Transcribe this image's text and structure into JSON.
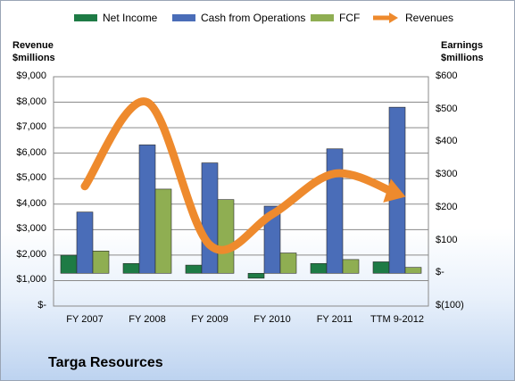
{
  "chart_data": {
    "type": "bar",
    "title": "",
    "categories": [
      "FY 2007",
      "FY 2008",
      "FY 2009",
      "FY 2010",
      "FY 2011",
      "TTM 9-2012"
    ],
    "series": [
      {
        "name": "Net Income",
        "axis": "right",
        "type": "bar",
        "color": "#1e7b45",
        "values": [
          55,
          30,
          25,
          -15,
          30,
          35
        ]
      },
      {
        "name": "Cash from Operations",
        "axis": "right",
        "type": "bar",
        "color": "#4a6db8",
        "values": [
          187,
          392,
          337,
          205,
          380,
          507
        ]
      },
      {
        "name": "FCF",
        "axis": "right",
        "type": "bar",
        "color": "#8fae52",
        "values": [
          68,
          257,
          225,
          62,
          42,
          18
        ]
      },
      {
        "name": "Revenues",
        "axis": "left",
        "type": "line",
        "color": "#ee8a2d",
        "values": [
          4700,
          8000,
          2400,
          3600,
          5200,
          4400
        ]
      }
    ],
    "left_axis": {
      "label_line1": "Revenue",
      "label_line2": "$millions",
      "ylim": [
        0,
        9000
      ],
      "ticks": [
        "$9,000",
        "$8,000",
        "$7,000",
        "$6,000",
        "$5,000",
        "$4,000",
        "$3,000",
        "$2,000",
        "$1,000",
        "$-"
      ]
    },
    "right_axis": {
      "label_line1": "Earnings",
      "label_line2": "$millions",
      "ylim": [
        -100,
        600
      ],
      "ticks": [
        "$600",
        "$500",
        "$400",
        "$300",
        "$200",
        "$100",
        "$-",
        "$(100)"
      ]
    },
    "grid": true,
    "legend": "top"
  },
  "footer": {
    "company": "Targa Resources"
  }
}
